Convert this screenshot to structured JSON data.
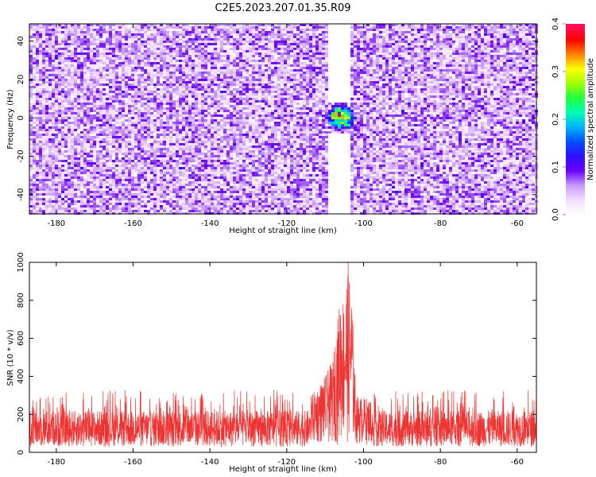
{
  "figure_title": "C2E5.2023.207.01.35.R09",
  "chart_data": [
    {
      "type": "heatmap",
      "name": "spectrogram",
      "xlabel": "Height of straight line (km)",
      "ylabel": "Frequency (Hz)",
      "xlim": [
        -187,
        -55
      ],
      "ylim": [
        -50,
        49
      ],
      "x_ticks": [
        -180,
        -160,
        -140,
        -120,
        -100,
        -80,
        -60
      ],
      "y_ticks": [
        -40,
        -20,
        0,
        20,
        40
      ],
      "colorbar": {
        "label": "Normalized spectral amplitude",
        "range": [
          0.0,
          0.4
        ],
        "ticks": [
          0.0,
          0.1,
          0.2,
          0.3,
          0.4
        ],
        "tick_labels": [
          "0.0",
          "0.1",
          "0.2",
          "0.3",
          "0.4"
        ],
        "colors": [
          "#ffffff",
          "#f2dcff",
          "#c79bff",
          "#6a00ff",
          "#3010ff",
          "#0050ff",
          "#00b4ff",
          "#00ffb0",
          "#20ff40",
          "#a0ff00",
          "#ffff00",
          "#ff8000",
          "#ff0000",
          "#ff1060"
        ]
      },
      "background_level": 0.06,
      "clear_band_km": [
        -109,
        -103
      ],
      "hotspot": {
        "x_km": -106,
        "freq_hz": 0,
        "peak_value": 0.4
      }
    },
    {
      "type": "line",
      "name": "snr-trace",
      "color": "#ee3333",
      "xlabel": "Height of straight line (km)",
      "ylabel": "SNR (10 * v/v)",
      "xlim": [
        -187,
        -55
      ],
      "ylim": [
        0,
        1000
      ],
      "x_ticks": [
        -180,
        -160,
        -140,
        -120,
        -100,
        -80,
        -60
      ],
      "y_ticks": [
        0,
        200,
        400,
        600,
        800,
        1000
      ],
      "baseline_range": [
        30,
        220
      ],
      "typical_max": 330,
      "peak": {
        "x_km": -104,
        "value": 1000
      },
      "peak_region": [
        {
          "x": -114,
          "value": 290
        },
        {
          "x": -110,
          "value": 400
        },
        {
          "x": -108,
          "value": 490
        },
        {
          "x": -107,
          "value": 660
        },
        {
          "x": -106,
          "value": 840
        },
        {
          "x": -105,
          "value": 820
        },
        {
          "x": -104,
          "value": 1000
        },
        {
          "x": -103,
          "value": 820
        },
        {
          "x": -102,
          "value": 300
        },
        {
          "x": -98,
          "value": 280
        }
      ]
    }
  ]
}
